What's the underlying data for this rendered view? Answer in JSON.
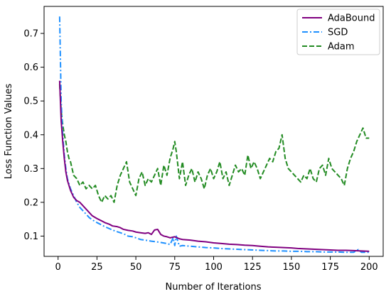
{
  "chart_data": {
    "type": "line",
    "xlabel": "Number of Iterations",
    "ylabel": "Loss Function Values",
    "xlim": [
      -9,
      209
    ],
    "ylim": [
      0.04,
      0.78
    ],
    "xticks": [
      0,
      25,
      50,
      75,
      100,
      125,
      150,
      175,
      200
    ],
    "yticks": [
      0.1,
      0.2,
      0.3,
      0.4,
      0.5,
      0.6,
      0.7
    ],
    "grid": false,
    "legend_position": "top-right",
    "series": [
      {
        "name": "AdaBound",
        "color": "#800080",
        "style": "solid",
        "points": [
          [
            1,
            0.56
          ],
          [
            2,
            0.44
          ],
          [
            3,
            0.38
          ],
          [
            4,
            0.33
          ],
          [
            5,
            0.29
          ],
          [
            6,
            0.265
          ],
          [
            8,
            0.235
          ],
          [
            10,
            0.215
          ],
          [
            12,
            0.205
          ],
          [
            14,
            0.2
          ],
          [
            16,
            0.19
          ],
          [
            18,
            0.18
          ],
          [
            20,
            0.17
          ],
          [
            22,
            0.16
          ],
          [
            25,
            0.152
          ],
          [
            28,
            0.145
          ],
          [
            30,
            0.14
          ],
          [
            33,
            0.135
          ],
          [
            35,
            0.13
          ],
          [
            38,
            0.128
          ],
          [
            40,
            0.125
          ],
          [
            42,
            0.12
          ],
          [
            45,
            0.117
          ],
          [
            48,
            0.115
          ],
          [
            50,
            0.112
          ],
          [
            53,
            0.11
          ],
          [
            56,
            0.108
          ],
          [
            58,
            0.11
          ],
          [
            60,
            0.105
          ],
          [
            62,
            0.118
          ],
          [
            64,
            0.12
          ],
          [
            66,
            0.105
          ],
          [
            68,
            0.1
          ],
          [
            70,
            0.098
          ],
          [
            72,
            0.095
          ],
          [
            75,
            0.098
          ],
          [
            78,
            0.092
          ],
          [
            80,
            0.09
          ],
          [
            85,
            0.088
          ],
          [
            90,
            0.085
          ],
          [
            95,
            0.083
          ],
          [
            100,
            0.08
          ],
          [
            105,
            0.078
          ],
          [
            110,
            0.076
          ],
          [
            115,
            0.075
          ],
          [
            120,
            0.073
          ],
          [
            125,
            0.072
          ],
          [
            130,
            0.07
          ],
          [
            135,
            0.068
          ],
          [
            140,
            0.067
          ],
          [
            145,
            0.066
          ],
          [
            150,
            0.065
          ],
          [
            155,
            0.063
          ],
          [
            160,
            0.062
          ],
          [
            165,
            0.061
          ],
          [
            170,
            0.06
          ],
          [
            175,
            0.059
          ],
          [
            180,
            0.058
          ],
          [
            185,
            0.058
          ],
          [
            190,
            0.057
          ],
          [
            195,
            0.056
          ],
          [
            200,
            0.055
          ]
        ]
      },
      {
        "name": "SGD",
        "color": "#1E90FF",
        "style": "dashdot",
        "points": [
          [
            1,
            0.75
          ],
          [
            2,
            0.5
          ],
          [
            3,
            0.4
          ],
          [
            4,
            0.34
          ],
          [
            5,
            0.3
          ],
          [
            6,
            0.27
          ],
          [
            8,
            0.24
          ],
          [
            10,
            0.22
          ],
          [
            12,
            0.2
          ],
          [
            14,
            0.185
          ],
          [
            16,
            0.175
          ],
          [
            18,
            0.165
          ],
          [
            20,
            0.155
          ],
          [
            22,
            0.148
          ],
          [
            25,
            0.14
          ],
          [
            28,
            0.133
          ],
          [
            30,
            0.128
          ],
          [
            33,
            0.122
          ],
          [
            35,
            0.118
          ],
          [
            38,
            0.113
          ],
          [
            40,
            0.11
          ],
          [
            43,
            0.105
          ],
          [
            45,
            0.1
          ],
          [
            48,
            0.098
          ],
          [
            50,
            0.095
          ],
          [
            53,
            0.09
          ],
          [
            56,
            0.088
          ],
          [
            60,
            0.085
          ],
          [
            65,
            0.082
          ],
          [
            70,
            0.078
          ],
          [
            72,
            0.075
          ],
          [
            74,
            0.095
          ],
          [
            75,
            0.072
          ],
          [
            76,
            0.1
          ],
          [
            78,
            0.07
          ],
          [
            80,
            0.072
          ],
          [
            85,
            0.07
          ],
          [
            90,
            0.068
          ],
          [
            95,
            0.066
          ],
          [
            100,
            0.065
          ],
          [
            105,
            0.063
          ],
          [
            110,
            0.062
          ],
          [
            115,
            0.061
          ],
          [
            120,
            0.06
          ],
          [
            125,
            0.059
          ],
          [
            130,
            0.058
          ],
          [
            135,
            0.057
          ],
          [
            140,
            0.056
          ],
          [
            145,
            0.056
          ],
          [
            150,
            0.055
          ],
          [
            155,
            0.055
          ],
          [
            160,
            0.054
          ],
          [
            165,
            0.054
          ],
          [
            170,
            0.053
          ],
          [
            175,
            0.053
          ],
          [
            180,
            0.053
          ],
          [
            185,
            0.052
          ],
          [
            190,
            0.052
          ],
          [
            193,
            0.06
          ],
          [
            195,
            0.052
          ],
          [
            200,
            0.052
          ]
        ]
      },
      {
        "name": "Adam",
        "color": "#228B22",
        "style": "dashed",
        "points": [
          [
            1,
            0.55
          ],
          [
            2,
            0.47
          ],
          [
            3,
            0.43
          ],
          [
            4,
            0.4
          ],
          [
            5,
            0.38
          ],
          [
            6,
            0.35
          ],
          [
            7,
            0.33
          ],
          [
            8,
            0.32
          ],
          [
            9,
            0.3
          ],
          [
            10,
            0.28
          ],
          [
            12,
            0.27
          ],
          [
            14,
            0.25
          ],
          [
            16,
            0.26
          ],
          [
            18,
            0.24
          ],
          [
            20,
            0.25
          ],
          [
            22,
            0.24
          ],
          [
            24,
            0.25
          ],
          [
            26,
            0.22
          ],
          [
            28,
            0.2
          ],
          [
            30,
            0.22
          ],
          [
            32,
            0.21
          ],
          [
            34,
            0.22
          ],
          [
            36,
            0.2
          ],
          [
            38,
            0.25
          ],
          [
            40,
            0.28
          ],
          [
            42,
            0.3
          ],
          [
            44,
            0.32
          ],
          [
            46,
            0.26
          ],
          [
            48,
            0.24
          ],
          [
            50,
            0.22
          ],
          [
            52,
            0.27
          ],
          [
            54,
            0.29
          ],
          [
            56,
            0.25
          ],
          [
            58,
            0.27
          ],
          [
            60,
            0.26
          ],
          [
            62,
            0.28
          ],
          [
            64,
            0.3
          ],
          [
            66,
            0.25
          ],
          [
            68,
            0.31
          ],
          [
            70,
            0.28
          ],
          [
            72,
            0.33
          ],
          [
            74,
            0.36
          ],
          [
            75,
            0.38
          ],
          [
            76,
            0.35
          ],
          [
            78,
            0.27
          ],
          [
            80,
            0.32
          ],
          [
            82,
            0.25
          ],
          [
            84,
            0.28
          ],
          [
            86,
            0.3
          ],
          [
            88,
            0.26
          ],
          [
            90,
            0.29
          ],
          [
            92,
            0.27
          ],
          [
            94,
            0.24
          ],
          [
            96,
            0.28
          ],
          [
            98,
            0.3
          ],
          [
            100,
            0.27
          ],
          [
            102,
            0.29
          ],
          [
            104,
            0.32
          ],
          [
            106,
            0.27
          ],
          [
            108,
            0.29
          ],
          [
            110,
            0.25
          ],
          [
            112,
            0.28
          ],
          [
            114,
            0.31
          ],
          [
            116,
            0.29
          ],
          [
            118,
            0.3
          ],
          [
            120,
            0.28
          ],
          [
            122,
            0.34
          ],
          [
            124,
            0.3
          ],
          [
            126,
            0.32
          ],
          [
            128,
            0.3
          ],
          [
            130,
            0.27
          ],
          [
            132,
            0.29
          ],
          [
            134,
            0.31
          ],
          [
            136,
            0.33
          ],
          [
            138,
            0.32
          ],
          [
            140,
            0.35
          ],
          [
            142,
            0.36
          ],
          [
            144,
            0.4
          ],
          [
            146,
            0.33
          ],
          [
            148,
            0.3
          ],
          [
            150,
            0.29
          ],
          [
            152,
            0.28
          ],
          [
            154,
            0.27
          ],
          [
            156,
            0.26
          ],
          [
            158,
            0.28
          ],
          [
            160,
            0.27
          ],
          [
            162,
            0.3
          ],
          [
            164,
            0.27
          ],
          [
            166,
            0.26
          ],
          [
            168,
            0.3
          ],
          [
            170,
            0.31
          ],
          [
            172,
            0.28
          ],
          [
            174,
            0.33
          ],
          [
            176,
            0.3
          ],
          [
            178,
            0.29
          ],
          [
            180,
            0.28
          ],
          [
            182,
            0.27
          ],
          [
            184,
            0.25
          ],
          [
            186,
            0.3
          ],
          [
            188,
            0.33
          ],
          [
            190,
            0.35
          ],
          [
            192,
            0.38
          ],
          [
            194,
            0.4
          ],
          [
            196,
            0.42
          ],
          [
            198,
            0.39
          ],
          [
            200,
            0.39
          ]
        ]
      }
    ]
  }
}
